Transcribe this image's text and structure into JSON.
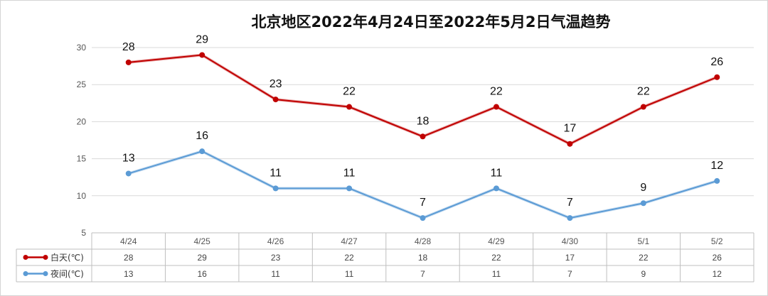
{
  "chart_data": {
    "type": "line",
    "title": "北京地区2022年4月24日至2022年5月2日气温趋势",
    "categories": [
      "4/24",
      "4/25",
      "4/26",
      "4/27",
      "4/28",
      "4/29",
      "4/30",
      "5/1",
      "5/2"
    ],
    "series": [
      {
        "name": "白天(℃)",
        "values": [
          28,
          29,
          23,
          22,
          18,
          22,
          17,
          22,
          26
        ],
        "color": "#C00000"
      },
      {
        "name": "夜间(℃)",
        "values": [
          13,
          16,
          11,
          11,
          7,
          11,
          7,
          9,
          12
        ],
        "color": "#5B9BD5"
      }
    ],
    "ylim": [
      5,
      30
    ],
    "yticks": [
      "5",
      "10",
      "15",
      "20",
      "25",
      "30"
    ],
    "grid": true,
    "legend": "data-table-left",
    "data_table": true,
    "data_labels": true
  }
}
